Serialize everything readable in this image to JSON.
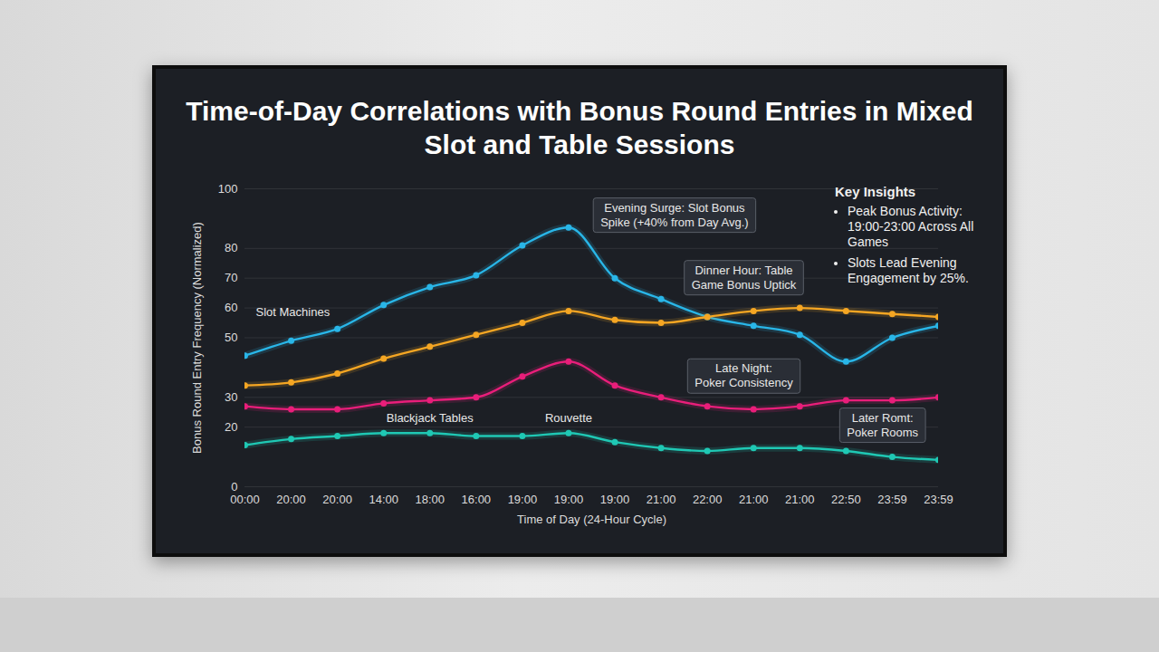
{
  "chart_data": {
    "type": "line",
    "title": "Time-of-Day Correlations with Bonus Round Entries in Mixed Slot and Table Sessions",
    "x_label": "Time of Day (24-Hour Cycle)",
    "y_label": "Bonus Round Entry Frequency (Normalized)",
    "categories": [
      "00:00",
      "20:00",
      "20:00",
      "14:00",
      "18:00",
      "16:00",
      "19:00",
      "19:00",
      "19:00",
      "21:00",
      "22:00",
      "21:00",
      "21:00",
      "22:50",
      "23:59",
      "23:59"
    ],
    "ylim": [
      0,
      100
    ],
    "yticks": [
      0,
      20,
      30,
      50,
      60,
      70,
      80,
      100
    ],
    "grid": true,
    "marker": "circle",
    "line_style": "solid",
    "series": [
      {
        "name": "Slot Machines",
        "color": "#29b6e8",
        "values": [
          44,
          49,
          53,
          61,
          67,
          71,
          81,
          87,
          70,
          63,
          57,
          54,
          51,
          42,
          50,
          54
        ]
      },
      {
        "color": "#f5a623",
        "values": [
          34,
          35,
          38,
          43,
          47,
          51,
          55,
          59,
          56,
          55,
          57,
          59,
          60,
          59,
          58,
          57
        ]
      },
      {
        "name": "Rouvette",
        "color": "#e91e7a",
        "values": [
          27,
          26,
          26,
          28,
          29,
          30,
          37,
          42,
          34,
          30,
          27,
          26,
          27,
          29,
          29,
          30
        ]
      },
      {
        "name": "Blackjack Tables",
        "color": "#1fc8b4",
        "values": [
          14,
          16,
          17,
          18,
          18,
          17,
          17,
          18,
          15,
          13,
          12,
          13,
          13,
          12,
          10,
          9
        ]
      }
    ],
    "annotations": [
      {
        "text": [
          "Evening Surge: Slot Bonus",
          "Spike (+40% from Day Avg.)"
        ]
      },
      {
        "text": [
          "Dinner Hour: Table",
          "Game Bonus Uptick"
        ]
      },
      {
        "text": [
          "Late Night:",
          "Poker Consistency"
        ]
      },
      {
        "text": [
          "Later Romt:",
          "Poker Rooms"
        ]
      }
    ],
    "insights": {
      "title": "Key Insights",
      "items": [
        "Peak Bonus Activity: 19:00-23:00 Across All Games",
        "Slots Lead Evening Engagement by 25%."
      ]
    }
  }
}
